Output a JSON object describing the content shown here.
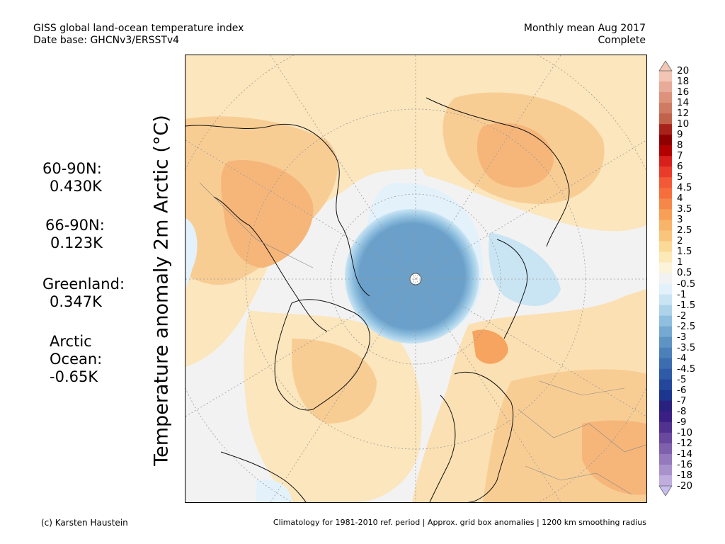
{
  "header": {
    "line1": "GISS global land-ocean temperature index",
    "line2": "Date base: GHCNv3/ERSSTv4",
    "right1": "Monthly mean Aug 2017",
    "right2": "Complete"
  },
  "ylabel": "Temperature anomaly 2m Arctic (°C)",
  "stats": [
    {
      "label": "60-90N:",
      "value": "0.430K"
    },
    {
      "label": "66-90N:",
      "value": "0.123K"
    },
    {
      "label": "Greenland:",
      "value": "0.347K"
    },
    {
      "label": "Arctic",
      "label2": "Ocean:",
      "value": "-0.65K"
    }
  ],
  "colorbar": {
    "labels": [
      "20",
      "18",
      "16",
      "14",
      "12",
      "10",
      "9",
      "8",
      "7",
      "6",
      "5",
      "4.5",
      "4",
      "3.5",
      "3",
      "2.5",
      "2",
      "1.5",
      "1",
      "0.5",
      "-0.5",
      "-1",
      "-1.5",
      "-2",
      "-2.5",
      "-3",
      "-3.5",
      "-4",
      "-4.5",
      "-5",
      "-6",
      "-7",
      "-8",
      "-9",
      "-10",
      "-12",
      "-14",
      "-16",
      "-18",
      "-20"
    ],
    "colors": [
      "#f2c5b4",
      "#e7ab97",
      "#dc927b",
      "#cf7a62",
      "#c1634b",
      "#a8221a",
      "#900000",
      "#b30000",
      "#d7201c",
      "#e93b2a",
      "#f25a37",
      "#f56e3c",
      "#f58748",
      "#f79f57",
      "#f8b468",
      "#f9c57c",
      "#fbd996",
      "#fce9b7",
      "#fcf4d9",
      "#f2f2f2",
      "#e3f1fb",
      "#c9e5f4",
      "#add3ea",
      "#8fbfdf",
      "#76a9d1",
      "#5e94c3",
      "#4c80b8",
      "#3b6db0",
      "#2e5aa6",
      "#24479b",
      "#1c358e",
      "#2a217f",
      "#3b1f85",
      "#51328f",
      "#68499e",
      "#7e60ad",
      "#9479bd",
      "#a992cc",
      "#bfadde"
    ]
  },
  "footer": {
    "left": "(c) Karsten Haustein",
    "right": "Climatology for 1981-2010 ref. period | Approx. grid box anomalies | 1200 km smoothing radius"
  }
}
